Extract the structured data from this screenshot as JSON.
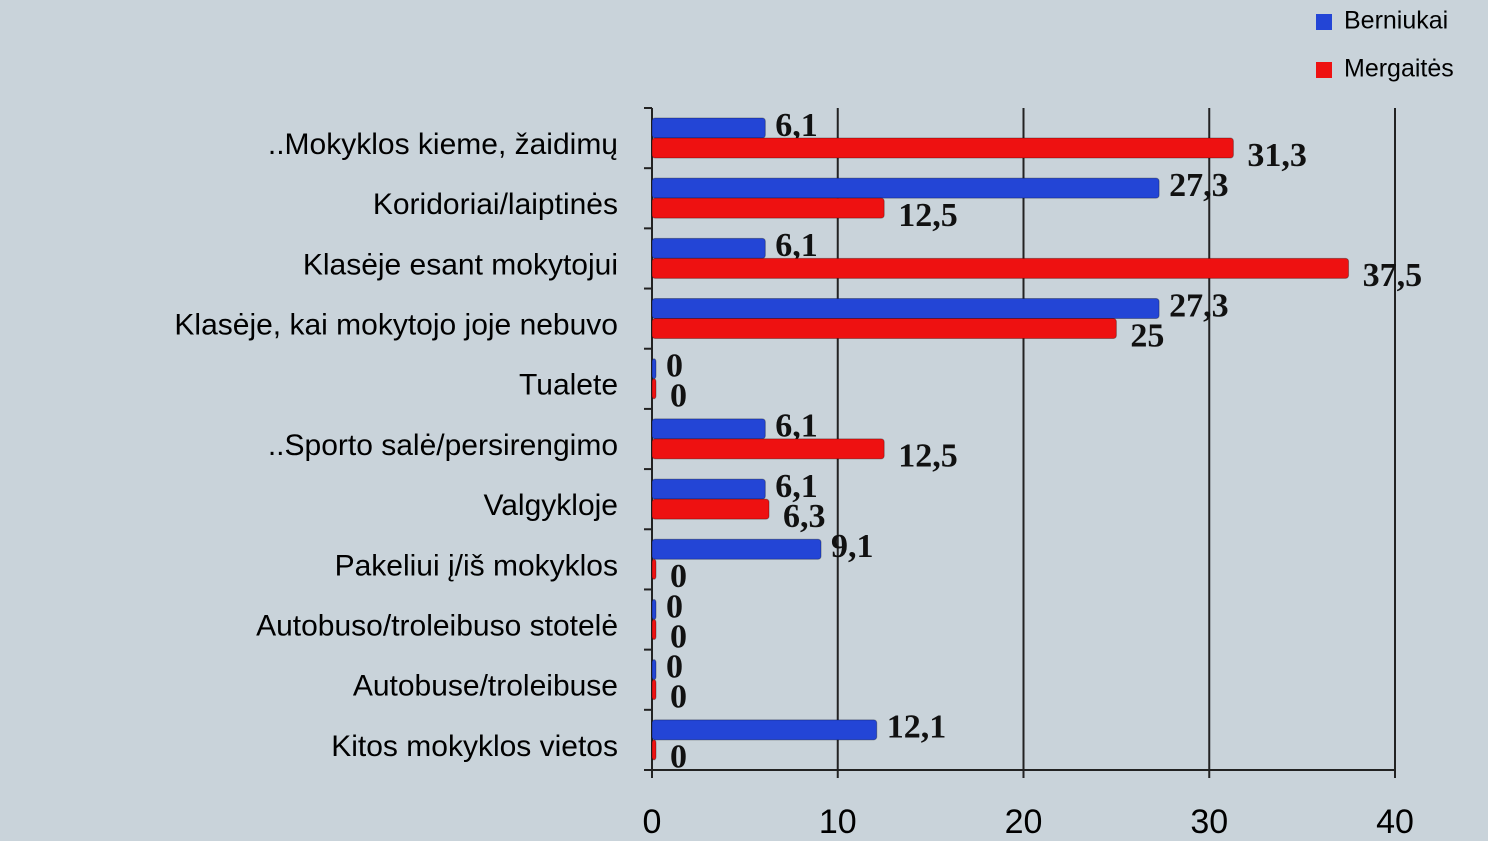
{
  "chart_data": {
    "type": "hbar",
    "categories": [
      "..Mokyklos kieme, žaidimų",
      "Koridoriai/laiptinės",
      "Klasėje esant mokytojui",
      "Klasėje, kai mokytojo joje nebuvo",
      "Tualete",
      "..Sporto salė/persirengimo",
      "Valgykloje",
      "Pakeliui į/iš mokyklos",
      "Autobuso/troleibuso stotelė",
      "Autobuse/troleibuse",
      "Kitos mokyklos vietos"
    ],
    "series": [
      {
        "name": "Berniukai",
        "color": "#2345d6",
        "values": [
          6.1,
          27.3,
          6.1,
          27.3,
          0,
          6.1,
          6.1,
          9.1,
          0,
          0,
          12.1
        ],
        "value_labels": [
          "6,1",
          "27,3",
          "6,1",
          "27,3",
          "0",
          "6,1",
          "6,1",
          "9,1",
          "0",
          "0",
          "12,1"
        ]
      },
      {
        "name": "Mergaitės",
        "color": "#ee1111",
        "values": [
          31.3,
          12.5,
          37.5,
          25,
          0,
          12.5,
          6.3,
          0,
          0,
          0,
          0
        ],
        "value_labels": [
          "31,3",
          "12,5",
          "37,5",
          "25",
          "0",
          "12,5",
          "6,3",
          "0",
          "0",
          "0",
          "0"
        ]
      }
    ],
    "xlim": [
      0,
      40
    ],
    "xticks": [
      0,
      10,
      20,
      30,
      40
    ],
    "grid": true,
    "legend": "top-right"
  }
}
